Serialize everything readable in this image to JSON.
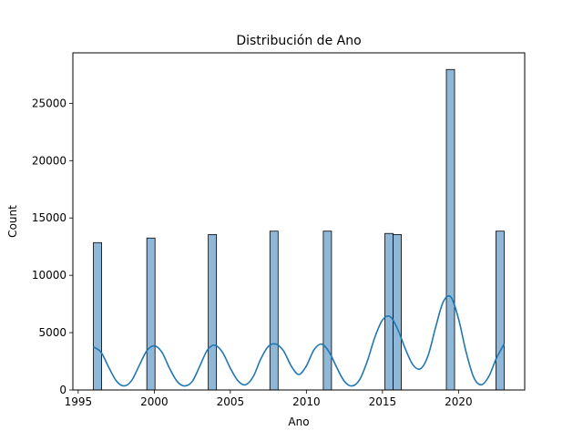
{
  "chart_data": {
    "type": "histogram",
    "title": "Distribución de Ano",
    "xlabel": "Ano",
    "ylabel": "Count",
    "xlim": [
      1994.65,
      2024.35
    ],
    "ylim": [
      0,
      29400
    ],
    "x_ticks": [
      1995,
      2000,
      2005,
      2010,
      2015,
      2020
    ],
    "x_tick_labels": [
      "1995",
      "2000",
      "2005",
      "2010",
      "2015",
      "2020"
    ],
    "y_ticks": [
      0,
      5000,
      10000,
      15000,
      20000,
      25000
    ],
    "y_tick_labels": [
      "0",
      "5000",
      "10000",
      "15000",
      "20000",
      "25000"
    ],
    "grid": false,
    "bars": [
      {
        "x0": 1996.0,
        "x1": 1996.54,
        "value": 12850
      },
      {
        "x0": 1999.51,
        "x1": 2000.05,
        "value": 13250
      },
      {
        "x0": 2003.55,
        "x1": 2004.09,
        "value": 13550
      },
      {
        "x0": 2007.6,
        "x1": 2008.14,
        "value": 13850
      },
      {
        "x0": 2011.11,
        "x1": 2011.65,
        "value": 13850
      },
      {
        "x0": 2015.16,
        "x1": 2015.7,
        "value": 13650
      },
      {
        "x0": 2015.7,
        "x1": 2016.24,
        "value": 13550
      },
      {
        "x0": 2019.2,
        "x1": 2019.74,
        "value": 27950
      },
      {
        "x0": 2022.46,
        "x1": 2023.0,
        "value": 13850
      }
    ],
    "kde": {
      "x": [
        1996.0,
        1996.5,
        1997.0,
        1997.5,
        1998.0,
        1998.5,
        1999.0,
        1999.5,
        2000.0,
        2000.5,
        2001.0,
        2001.5,
        2002.0,
        2002.5,
        2003.0,
        2003.5,
        2004.0,
        2004.5,
        2005.0,
        2005.5,
        2006.0,
        2006.5,
        2007.0,
        2007.5,
        2008.0,
        2008.5,
        2009.0,
        2009.5,
        2010.0,
        2010.5,
        2011.0,
        2011.5,
        2012.0,
        2012.5,
        2013.0,
        2013.5,
        2014.0,
        2014.5,
        2015.0,
        2015.5,
        2016.0,
        2016.5,
        2017.0,
        2017.5,
        2018.0,
        2018.5,
        2019.0,
        2019.5,
        2020.0,
        2020.5,
        2021.0,
        2021.5,
        2022.0,
        2022.5,
        2023.0
      ],
      "y": [
        3750,
        3300,
        2000,
        800,
        350,
        800,
        2100,
        3400,
        3850,
        3300,
        1900,
        750,
        350,
        750,
        2100,
        3500,
        3900,
        3250,
        1900,
        800,
        450,
        1150,
        2700,
        3800,
        4000,
        3400,
        2100,
        1350,
        2100,
        3500,
        4000,
        3300,
        1950,
        750,
        350,
        900,
        2500,
        4600,
        6100,
        6400,
        5300,
        3600,
        2200,
        1850,
        3000,
        5500,
        7700,
        8100,
        6200,
        3300,
        1100,
        450,
        1200,
        2800,
        4000
      ]
    },
    "colors": {
      "bar_fill": "#8fb8d8",
      "bar_edge": "#000000",
      "kde_line": "#1f77b4"
    }
  }
}
